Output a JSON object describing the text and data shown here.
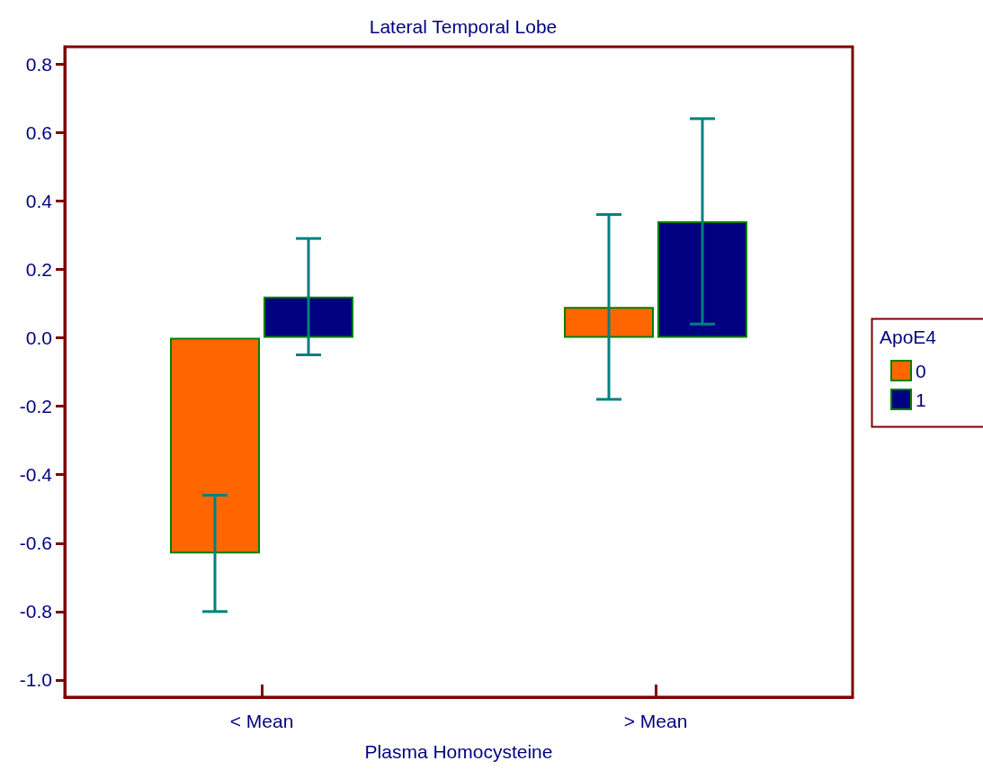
{
  "chart_data": {
    "type": "bar",
    "title": "Lateral Temporal Lobe",
    "xlabel": "Plasma Homocysteine",
    "legend_title": "ApoE4",
    "categories": [
      "< Mean",
      "> Mean"
    ],
    "series": [
      {
        "name": "0",
        "color": "#ff6600",
        "values": [
          -0.63,
          0.09
        ],
        "errors": [
          0.17,
          0.27
        ]
      },
      {
        "name": "1",
        "color": "#000080",
        "values": [
          0.12,
          0.34
        ],
        "errors": [
          0.17,
          0.3
        ]
      }
    ],
    "ylim": [
      -1.05,
      0.85
    ],
    "yticks": [
      {
        "value": -1,
        "label": "-1.0"
      },
      -0.8,
      -0.6,
      -0.4,
      -0.2,
      {
        "value": 0,
        "label": "0.0"
      },
      0.2,
      0.4,
      0.6,
      0.8
    ],
    "grid": false,
    "legend": "right"
  }
}
